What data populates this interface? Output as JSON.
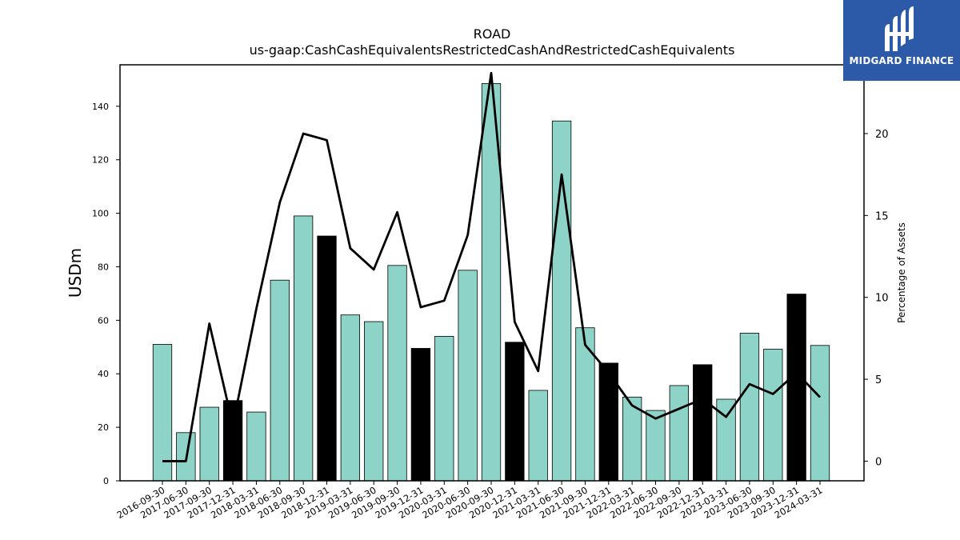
{
  "brand": {
    "name": "MIDGARD FINANCE",
    "bg_color": "#2d5aa8"
  },
  "chart_data": {
    "type": "bar",
    "title": "ROAD",
    "subtitle": "us-gaap:CashCashEquivalentsRestrictedCashAndRestrictedCashEquivalents",
    "ylabel": "USDm",
    "y2label": "Percentage of Assets",
    "ylim": [
      0,
      155.5
    ],
    "y2lim": [
      -1.2,
      24.2
    ],
    "yticks": [
      0,
      20,
      40,
      60,
      80,
      100,
      120,
      140
    ],
    "y2ticks": [
      0,
      5,
      10,
      15,
      20
    ],
    "categories": [
      "2016-09-30",
      "2017-06-30",
      "2017-09-30",
      "2017-12-31",
      "2018-03-31",
      "2018-06-30",
      "2018-09-30",
      "2018-12-31",
      "2019-03-31",
      "2019-06-30",
      "2019-09-30",
      "2019-12-31",
      "2020-03-31",
      "2020-06-30",
      "2020-09-30",
      "2020-12-31",
      "2021-03-31",
      "2021-06-30",
      "2021-09-30",
      "2021-12-31",
      "2022-03-31",
      "2022-06-30",
      "2022-09-30",
      "2022-12-31",
      "2023-03-31",
      "2023-06-30",
      "2023-09-30",
      "2023-12-31",
      "2024-03-31"
    ],
    "series": [
      {
        "kind": "bar",
        "values": [
          51,
          18,
          27.5,
          30,
          25.7,
          75,
          99,
          91.5,
          62,
          59.5,
          80.5,
          49.5,
          54,
          78.7,
          148.5,
          51.8,
          33.8,
          134.5,
          57.2,
          44,
          31.3,
          26.3,
          35.6,
          43.4,
          30.5,
          55.2,
          49.2,
          69.8,
          50.6
        ],
        "colors": [
          "#8dd3c7",
          "#8dd3c7",
          "#8dd3c7",
          "#000000",
          "#8dd3c7",
          "#8dd3c7",
          "#8dd3c7",
          "#000000",
          "#8dd3c7",
          "#8dd3c7",
          "#8dd3c7",
          "#000000",
          "#8dd3c7",
          "#8dd3c7",
          "#8dd3c7",
          "#000000",
          "#8dd3c7",
          "#8dd3c7",
          "#8dd3c7",
          "#000000",
          "#8dd3c7",
          "#8dd3c7",
          "#8dd3c7",
          "#000000",
          "#8dd3c7",
          "#8dd3c7",
          "#8dd3c7",
          "#000000",
          "#8dd3c7"
        ]
      },
      {
        "kind": "line",
        "axis": "right",
        "color": "#000000",
        "values": [
          0,
          0,
          8.4,
          2.2,
          9.3,
          15.8,
          20,
          19.6,
          13,
          11.7,
          15.2,
          9.4,
          9.8,
          13.8,
          23.7,
          8.5,
          5.5,
          17.5,
          7.1,
          5.4,
          3.4,
          2.6,
          3.2,
          3.8,
          2.7,
          4.7,
          4.1,
          5.4,
          3.9
        ]
      }
    ],
    "grid": false
  }
}
